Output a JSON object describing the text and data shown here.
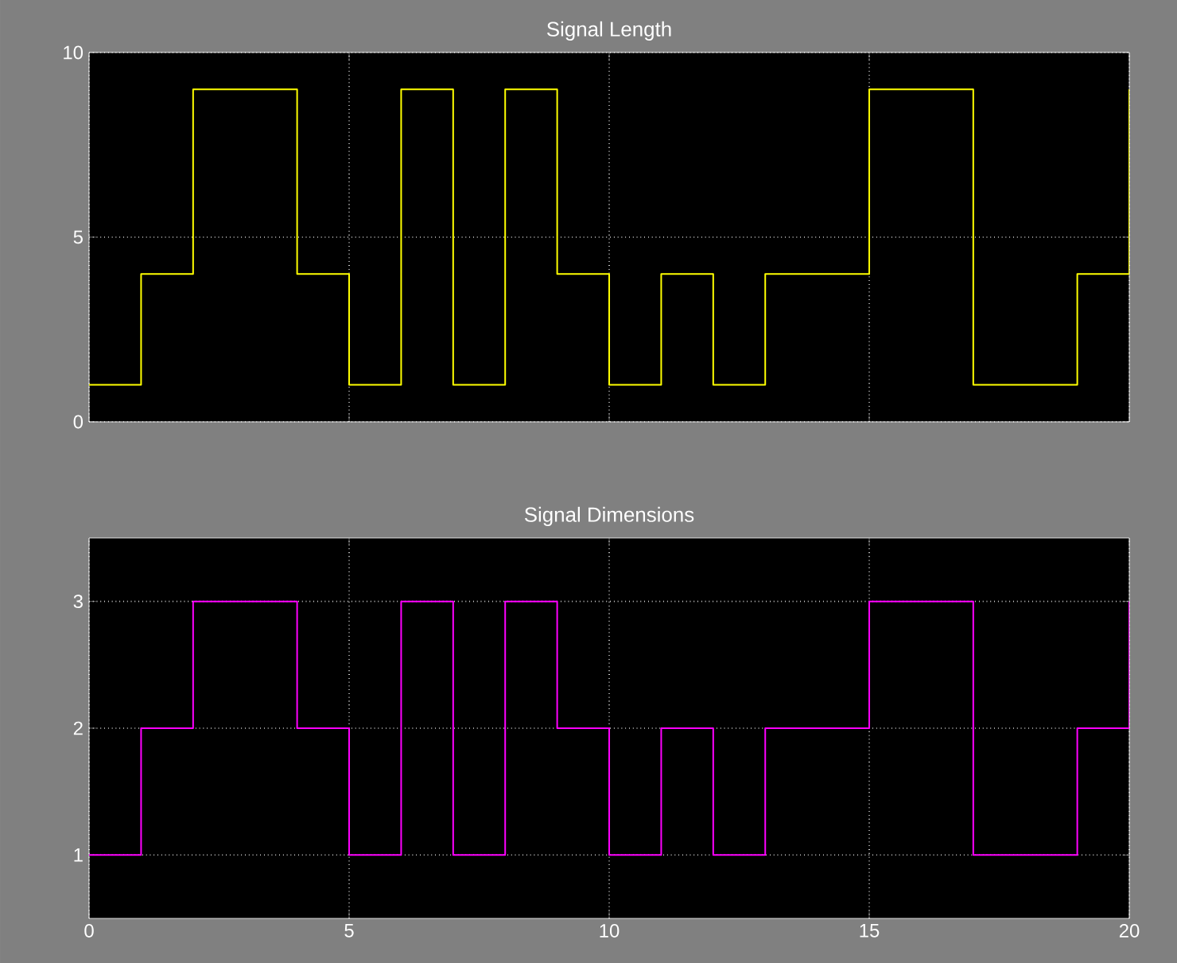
{
  "chart_data": [
    {
      "type": "step",
      "title": "Signal Length",
      "x": [
        0,
        1,
        2,
        3,
        4,
        5,
        6,
        7,
        8,
        9,
        10,
        11,
        12,
        13,
        14,
        15,
        16,
        17,
        18,
        19,
        20
      ],
      "series": [
        {
          "color": "#ffff00",
          "values": [
            1,
            4,
            9,
            9,
            4,
            1,
            9,
            1,
            9,
            4,
            1,
            4,
            1,
            4,
            4,
            9,
            9,
            1,
            1,
            4,
            9
          ]
        }
      ],
      "xlim": [
        0,
        20
      ],
      "ylim": [
        0,
        10
      ],
      "xticks": [
        0,
        5,
        10,
        15,
        20
      ],
      "yticks": [
        0,
        5,
        10
      ],
      "grid": true,
      "tick_labels": "y"
    },
    {
      "type": "step",
      "title": "Signal Dimensions",
      "x": [
        0,
        1,
        2,
        3,
        4,
        5,
        6,
        7,
        8,
        9,
        10,
        11,
        12,
        13,
        14,
        15,
        16,
        17,
        18,
        19,
        20
      ],
      "series": [
        {
          "color": "#ff00ff",
          "values": [
            1,
            2,
            3,
            3,
            2,
            1,
            3,
            1,
            3,
            2,
            1,
            2,
            1,
            2,
            2,
            3,
            3,
            1,
            1,
            2,
            3
          ]
        }
      ],
      "xlim": [
        0,
        20
      ],
      "ylim": [
        0.5,
        3.5
      ],
      "xticks": [
        0,
        5,
        10,
        15,
        20
      ],
      "yticks": [
        1,
        2,
        3
      ],
      "grid": true
    }
  ]
}
